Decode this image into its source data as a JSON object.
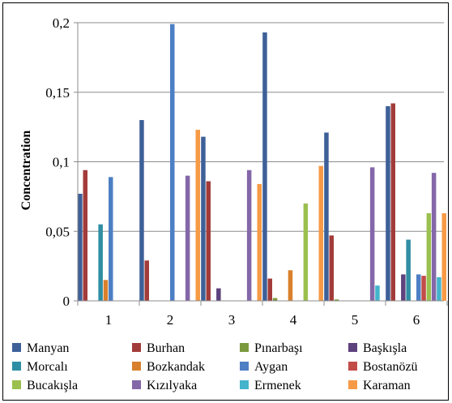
{
  "chart_data": {
    "type": "bar",
    "ylabel": "Concentration",
    "xlabel": "",
    "ylim": [
      0,
      0.2
    ],
    "yticks": [
      0,
      0.05,
      0.1,
      0.15,
      0.2
    ],
    "ytick_labels": [
      "0",
      "0,05",
      "0,1",
      "0,15",
      "0,2"
    ],
    "grid": "horizontal",
    "legend_position": "bottom",
    "categories": [
      "1",
      "2",
      "3",
      "4",
      "5",
      "6"
    ],
    "series": [
      {
        "name": "Manyan",
        "color": "#3e6098",
        "values": [
          0.077,
          0.13,
          0.118,
          0.193,
          0.121,
          0.14
        ]
      },
      {
        "name": "Burhan",
        "color": "#a23c3a",
        "values": [
          0.094,
          0.029,
          0.086,
          0.016,
          0.047,
          0.142
        ]
      },
      {
        "name": "Pınarbaşı",
        "color": "#7b9a3e",
        "values": [
          0,
          0,
          0,
          0.002,
          0.001,
          0
        ]
      },
      {
        "name": "Başkışla",
        "color": "#5d427d",
        "values": [
          0,
          0,
          0.009,
          0,
          0,
          0.019
        ]
      },
      {
        "name": "Morcalı",
        "color": "#2f8ea3",
        "values": [
          0.055,
          0,
          0,
          0,
          0,
          0.044
        ]
      },
      {
        "name": "Bozkandak",
        "color": "#d9802c",
        "values": [
          0.015,
          0,
          0,
          0.022,
          0,
          0
        ]
      },
      {
        "name": "Aygan",
        "color": "#4d7fc4",
        "values": [
          0.089,
          0.199,
          0,
          0,
          0,
          0.019
        ]
      },
      {
        "name": "Bostanözü",
        "color": "#c24b48",
        "values": [
          0,
          0,
          0,
          0,
          0,
          0.018
        ]
      },
      {
        "name": "Bucakışla",
        "color": "#9bc04f",
        "values": [
          0,
          0,
          0,
          0.07,
          0,
          0.063
        ]
      },
      {
        "name": "Kızılyaka",
        "color": "#8467a8",
        "values": [
          0,
          0.09,
          0.094,
          0,
          0.096,
          0.092
        ]
      },
      {
        "name": "Ermenek",
        "color": "#43b4cb",
        "values": [
          0,
          0,
          0,
          0,
          0.011,
          0.017
        ]
      },
      {
        "name": "Karaman",
        "color": "#f79a46",
        "values": [
          0,
          0.123,
          0.084,
          0.097,
          0,
          0.063
        ]
      }
    ]
  }
}
